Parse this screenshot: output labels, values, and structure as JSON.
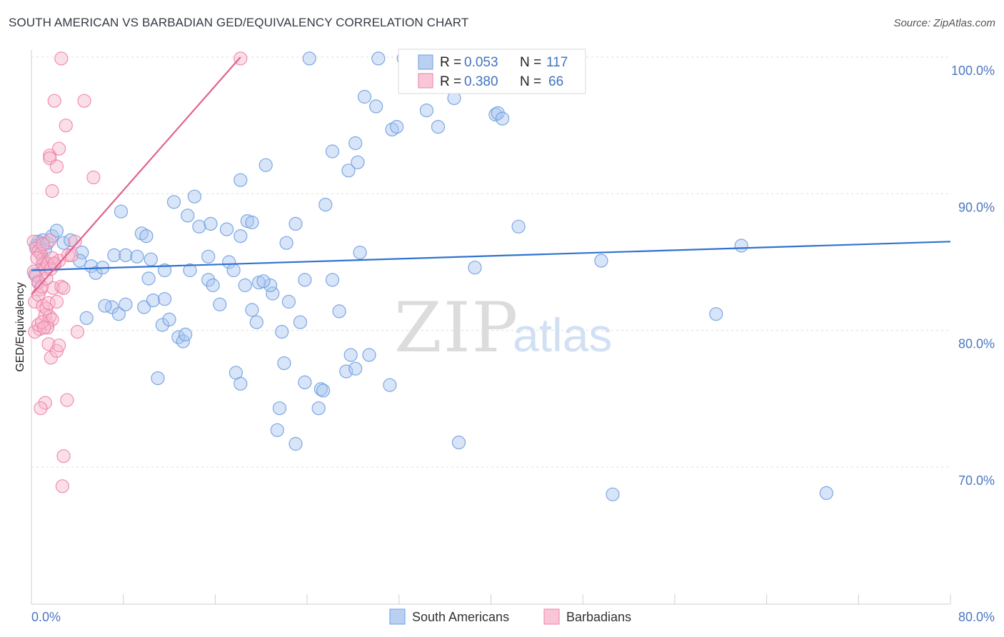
{
  "title": "SOUTH AMERICAN VS BARBADIAN GED/EQUIVALENCY CORRELATION CHART",
  "source": "Source: ZipAtlas.com",
  "watermark": {
    "zip": "ZIP",
    "atlas": "atlas"
  },
  "colors": {
    "blue": "#6f9ee0",
    "blue_fill": "#a9c6ef",
    "blue_line": "#2f72cf",
    "pink": "#ee82a8",
    "pink_fill": "#f7b8cd",
    "pink_line": "#e2618e",
    "tick_text": "#4b77c2",
    "grid": "#dcdcdc"
  },
  "legend": {
    "rows": [
      {
        "r_label": "R =",
        "r_value": "0.053",
        "n_label": "N =",
        "n_value": "117"
      },
      {
        "r_label": "R =",
        "r_value": "0.380",
        "n_label": "N =",
        "n_value": "66"
      }
    ]
  },
  "bottom_legend": [
    "South Americans",
    "Barbadians"
  ],
  "chart_data": {
    "type": "scatter",
    "title": "SOUTH AMERICAN VS BARBADIAN GED/EQUIVALENCY CORRELATION CHART",
    "xlabel": "",
    "ylabel": "GED/Equivalency",
    "xlim": [
      0,
      80
    ],
    "ylim": [
      60,
      100
    ],
    "x_tick_labels": [
      "0.0%",
      "80.0%"
    ],
    "y_ticks": [
      70,
      80,
      90,
      100
    ],
    "y_tick_labels": [
      "70.0%",
      "80.0%",
      "90.0%",
      "100.0%"
    ],
    "grid": true,
    "legend_position": "top-center",
    "series": [
      {
        "name": "South Americans",
        "trend": {
          "x": [
            0,
            80
          ],
          "y": [
            84.4,
            86.5
          ]
        },
        "points": [
          [
            0.4,
            86.2
          ],
          [
            0.6,
            86.5
          ],
          [
            0.8,
            86.4
          ],
          [
            1.0,
            86.6
          ],
          [
            1.2,
            85.9
          ],
          [
            1.4,
            86.4
          ],
          [
            1.8,
            86.9
          ],
          [
            2.2,
            87.3
          ],
          [
            2.8,
            86.4
          ],
          [
            3.4,
            86.6
          ],
          [
            4.4,
            85.7
          ],
          [
            0.3,
            84.1
          ],
          [
            0.6,
            83.6
          ],
          [
            0.8,
            85.6
          ],
          [
            1.0,
            84.9
          ],
          [
            4.2,
            85.1
          ],
          [
            5.2,
            84.7
          ],
          [
            5.6,
            84.2
          ],
          [
            6.2,
            84.6
          ],
          [
            7.2,
            85.5
          ],
          [
            8.2,
            85.5
          ],
          [
            9.2,
            85.4
          ],
          [
            10.4,
            85.2
          ],
          [
            11.6,
            84.4
          ],
          [
            13.8,
            84.4
          ],
          [
            15.4,
            85.4
          ],
          [
            17.2,
            85.0
          ],
          [
            17.6,
            84.4
          ],
          [
            18.2,
            86.9
          ],
          [
            9.6,
            87.1
          ],
          [
            10.0,
            86.9
          ],
          [
            13.6,
            88.4
          ],
          [
            14.6,
            87.6
          ],
          [
            15.6,
            87.8
          ],
          [
            17.0,
            87.4
          ],
          [
            18.8,
            88.0
          ],
          [
            19.2,
            87.9
          ],
          [
            23.0,
            87.8
          ],
          [
            7.8,
            88.7
          ],
          [
            12.4,
            89.4
          ],
          [
            14.2,
            89.8
          ],
          [
            18.2,
            91.0
          ],
          [
            20.4,
            92.1
          ],
          [
            25.6,
            89.2
          ],
          [
            26.2,
            93.1
          ],
          [
            27.6,
            91.7
          ],
          [
            28.2,
            93.7
          ],
          [
            28.4,
            92.3
          ],
          [
            29.0,
            97.1
          ],
          [
            30.0,
            96.4
          ],
          [
            31.4,
            94.7
          ],
          [
            31.8,
            94.9
          ],
          [
            34.4,
            96.1
          ],
          [
            35.4,
            94.9
          ],
          [
            36.8,
            97.0
          ],
          [
            40.4,
            95.8
          ],
          [
            40.6,
            95.9
          ],
          [
            41.0,
            95.5
          ],
          [
            24.2,
            99.9
          ],
          [
            30.2,
            99.9
          ],
          [
            32.4,
            99.9
          ],
          [
            22.2,
            86.4
          ],
          [
            28.6,
            85.7
          ],
          [
            38.6,
            84.6
          ],
          [
            42.4,
            87.6
          ],
          [
            49.6,
            85.1
          ],
          [
            61.8,
            86.2
          ],
          [
            59.6,
            81.2
          ],
          [
            50.6,
            68.0
          ],
          [
            69.2,
            68.1
          ],
          [
            37.2,
            71.8
          ],
          [
            23.0,
            71.7
          ],
          [
            21.4,
            72.7
          ],
          [
            21.6,
            74.3
          ],
          [
            25.0,
            74.3
          ],
          [
            25.2,
            75.7
          ],
          [
            25.4,
            75.6
          ],
          [
            23.8,
            76.2
          ],
          [
            31.2,
            76.0
          ],
          [
            27.4,
            77.0
          ],
          [
            28.2,
            77.2
          ],
          [
            22.0,
            77.6
          ],
          [
            27.8,
            78.2
          ],
          [
            29.4,
            78.2
          ],
          [
            17.8,
            76.9
          ],
          [
            18.2,
            76.1
          ],
          [
            11.0,
            76.5
          ],
          [
            11.4,
            80.4
          ],
          [
            12.0,
            80.8
          ],
          [
            12.8,
            79.5
          ],
          [
            13.2,
            79.2
          ],
          [
            13.4,
            79.7
          ],
          [
            21.8,
            79.9
          ],
          [
            23.4,
            80.6
          ],
          [
            19.6,
            80.6
          ],
          [
            19.2,
            81.5
          ],
          [
            22.4,
            82.1
          ],
          [
            16.4,
            81.9
          ],
          [
            21.0,
            82.7
          ],
          [
            20.8,
            83.3
          ],
          [
            19.8,
            83.5
          ],
          [
            18.6,
            83.3
          ],
          [
            15.4,
            83.7
          ],
          [
            15.8,
            83.3
          ],
          [
            20.2,
            83.6
          ],
          [
            23.8,
            83.7
          ],
          [
            26.2,
            83.7
          ],
          [
            26.8,
            81.4
          ],
          [
            9.8,
            81.7
          ],
          [
            10.6,
            82.2
          ],
          [
            11.6,
            82.3
          ],
          [
            7.0,
            81.7
          ],
          [
            7.6,
            81.2
          ],
          [
            8.2,
            81.9
          ],
          [
            6.4,
            81.8
          ],
          [
            4.8,
            80.9
          ],
          [
            10.2,
            83.8
          ]
        ]
      },
      {
        "name": "Barbadians",
        "trend": {
          "x": [
            0,
            18.2
          ],
          "y": [
            82.6,
            100
          ]
        },
        "points": [
          [
            2.6,
            99.9
          ],
          [
            18.2,
            99.9
          ],
          [
            2.0,
            96.8
          ],
          [
            4.6,
            96.8
          ],
          [
            3.0,
            95.0
          ],
          [
            1.6,
            92.8
          ],
          [
            1.6,
            92.6
          ],
          [
            2.4,
            93.3
          ],
          [
            2.2,
            92.0
          ],
          [
            1.8,
            90.2
          ],
          [
            5.4,
            91.2
          ],
          [
            0.2,
            86.5
          ],
          [
            0.4,
            86.0
          ],
          [
            0.6,
            85.8
          ],
          [
            0.8,
            85.6
          ],
          [
            1.0,
            85.2
          ],
          [
            1.2,
            85.0
          ],
          [
            1.6,
            86.6
          ],
          [
            2.0,
            84.8
          ],
          [
            2.4,
            85.1
          ],
          [
            0.2,
            84.3
          ],
          [
            0.4,
            84.0
          ],
          [
            0.6,
            83.5
          ],
          [
            0.8,
            83.0
          ],
          [
            1.0,
            84.8
          ],
          [
            1.2,
            84.5
          ],
          [
            1.4,
            84.9
          ],
          [
            1.8,
            85.3
          ],
          [
            3.2,
            85.5
          ],
          [
            0.3,
            82.1
          ],
          [
            0.6,
            82.6
          ],
          [
            1.0,
            81.8
          ],
          [
            1.2,
            81.1
          ],
          [
            1.4,
            80.5
          ],
          [
            1.6,
            81.0
          ],
          [
            1.8,
            80.8
          ],
          [
            1.4,
            80.2
          ],
          [
            0.7,
            80.1
          ],
          [
            0.3,
            79.9
          ],
          [
            1.5,
            79.0
          ],
          [
            1.7,
            78.0
          ],
          [
            2.2,
            78.5
          ],
          [
            2.4,
            78.9
          ],
          [
            4.0,
            79.9
          ],
          [
            0.6,
            80.4
          ],
          [
            0.9,
            80.6
          ],
          [
            1.1,
            80.2
          ],
          [
            1.3,
            81.6
          ],
          [
            1.5,
            82.0
          ],
          [
            2.2,
            82.1
          ],
          [
            1.9,
            83.1
          ],
          [
            2.6,
            83.2
          ],
          [
            2.8,
            83.1
          ],
          [
            0.9,
            83.2
          ],
          [
            1.3,
            83.8
          ],
          [
            1.0,
            86.3
          ],
          [
            0.5,
            85.3
          ],
          [
            3.8,
            86.5
          ],
          [
            3.5,
            85.5
          ],
          [
            1.2,
            74.7
          ],
          [
            0.8,
            74.3
          ],
          [
            3.1,
            74.9
          ],
          [
            2.8,
            70.8
          ],
          [
            2.7,
            68.6
          ],
          [
            1.7,
            84.5
          ],
          [
            2.0,
            84.9
          ]
        ]
      }
    ]
  }
}
